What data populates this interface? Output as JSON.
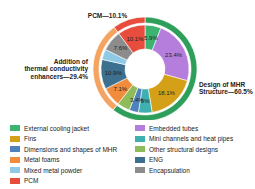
{
  "chart_data": {
    "type": "donut",
    "categories": [
      "External cooling jacket",
      "Embedded tubes",
      "Fins",
      "Mini channels and heat pipes",
      "Dimensions and shapes of MHR",
      "Other structural designs",
      "Metal foams",
      "ENG",
      "Mixed metal powder",
      "Encapsulation",
      "PCM"
    ],
    "values": [
      5.9,
      23.4,
      18.1,
      5,
      3.4,
      4.7,
      7.1,
      10.9,
      3.8,
      7.6,
      10.1
    ],
    "value_labels": [
      "5.9%",
      "23.4%",
      "18.1%",
      "5%",
      "3.4%",
      null,
      "7.1%",
      "10.9%",
      null,
      "7.6%",
      "10.1%"
    ],
    "colors": [
      "#3cb371",
      "#b57edc",
      "#d4a017",
      "#3fb0b0",
      "#4f81bd",
      "#8fbc5a",
      "#f08c3c",
      "#3d6f8e",
      "#8ecae6",
      "#8c8c8c",
      "#e84c3d"
    ],
    "groups": {
      "values": [
        60.5,
        29.4,
        10.1
      ],
      "value_labels": [
        "Design of MHR\nStructure—60.5%",
        "Addition of\nthermal conductivity\nenhancers—29.4%",
        "PCM—10.1%"
      ],
      "colors": [
        "#2e9e5b",
        "#f4a460",
        "#e84c3d"
      ]
    }
  }
}
